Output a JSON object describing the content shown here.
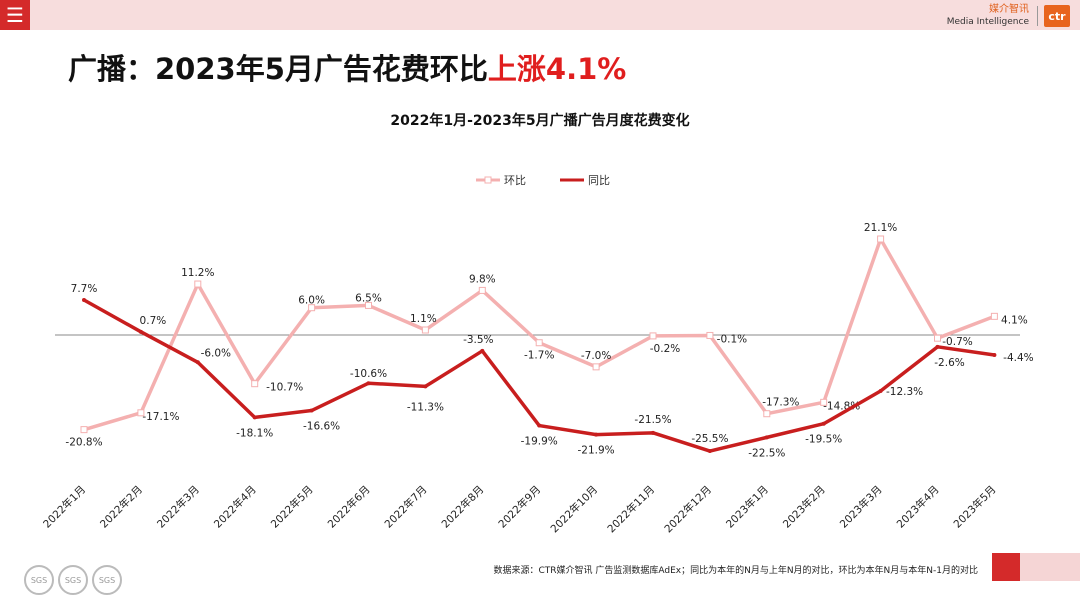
{
  "header": {
    "menu_icon": "menu-icon",
    "brand_cn": "媒介智讯",
    "brand_en": "Media Intelligence",
    "brand_logo": "ctr"
  },
  "headline": {
    "prefix": "广播：2023年5月广告花费环比",
    "highlight": "上涨4.1%"
  },
  "colors": {
    "accent": "#d42a2a",
    "huanbi": "#f4b0b0",
    "tongbi": "#c81e1e"
  },
  "chart_data": {
    "type": "line",
    "title": "2022年1月-2023年5月广播广告月度花费变化",
    "categories": [
      "2022年1月",
      "2022年2月",
      "2022年3月",
      "2022年4月",
      "2022年5月",
      "2022年6月",
      "2022年7月",
      "2022年8月",
      "2022年9月",
      "2022年10月",
      "2022年11月",
      "2022年12月",
      "2023年1月",
      "2023年2月",
      "2023年3月",
      "2023年4月",
      "2023年5月"
    ],
    "series": [
      {
        "name": "环比",
        "values": [
          -20.8,
          -17.1,
          11.2,
          -10.7,
          6.0,
          6.5,
          1.1,
          9.8,
          -1.7,
          -7.0,
          -0.2,
          -0.1,
          -17.3,
          -14.8,
          21.1,
          -0.7,
          4.1
        ],
        "labels": [
          "-20.8%",
          "-17.1%",
          "11.2%",
          "-10.7%",
          "6.0%",
          "6.5%",
          "1.1%",
          "9.8%",
          "-1.7%",
          "-7.0%",
          "-0.2%",
          "-0.1%",
          "-17.3%",
          "-14.8%",
          "21.1%",
          "-0.7%",
          "4.1%"
        ]
      },
      {
        "name": "同比",
        "values": [
          7.7,
          0.7,
          -6.0,
          -18.1,
          -16.6,
          -10.6,
          -11.3,
          -3.5,
          -19.9,
          -21.9,
          -21.5,
          -25.5,
          -22.5,
          -19.5,
          -12.3,
          -2.6,
          -4.4
        ],
        "labels": [
          "7.7%",
          "0.7%",
          "-6.0%",
          "-18.1%",
          "-16.6%",
          "-10.6%",
          "-11.3%",
          "-3.5%",
          "-19.9%",
          "-21.9%",
          "-21.5%",
          "-25.5%",
          "-22.5%",
          "-19.5%",
          "-12.3%",
          "-2.6%",
          "-4.4%"
        ]
      }
    ],
    "legend": "top-center",
    "grid": false
  },
  "footer": {
    "note": "数据来源：CTR媒介智讯 广告监测数据库AdEx；同比为本年的N月与上年N月的对比，环比为本年N月与本年N-1月的对比",
    "cert_labels": [
      "SGS",
      "SGS",
      "SGS"
    ]
  }
}
